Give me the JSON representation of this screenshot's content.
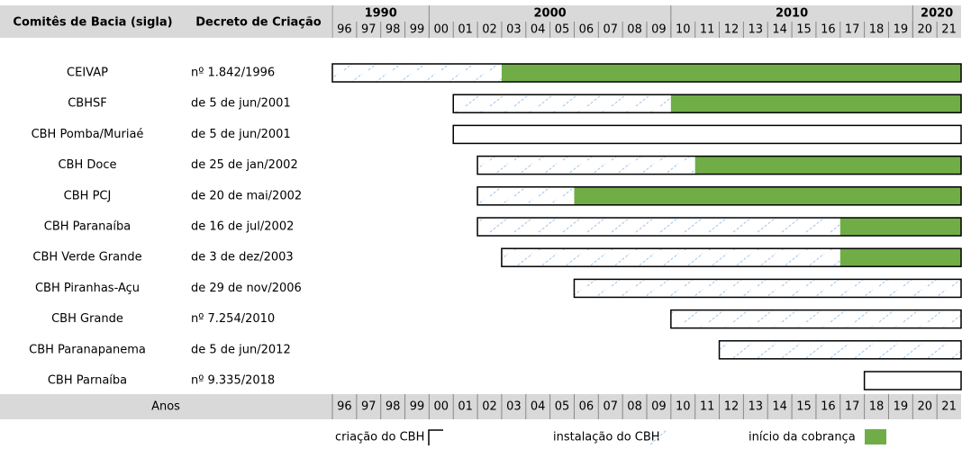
{
  "chart_data": {
    "type": "gantt",
    "headers": [
      "Comitês de Bacia (sigla)",
      "Decreto de Criação"
    ],
    "footer_label": "Anos",
    "decades": [
      1990,
      2000,
      2010,
      2020
    ],
    "years": [
      "96",
      "97",
      "98",
      "99",
      "00",
      "01",
      "02",
      "03",
      "04",
      "05",
      "06",
      "07",
      "08",
      "09",
      "10",
      "11",
      "12",
      "13",
      "14",
      "15",
      "16",
      "17",
      "18",
      "19",
      "20",
      "21"
    ],
    "xlim": [
      1996,
      2022
    ],
    "rows": [
      {
        "name": "CEIVAP",
        "decree": "nº 1.842/1996",
        "criacao": 1996,
        "instalacao": 1996,
        "cobranca": 2003
      },
      {
        "name": "CBHSF",
        "decree": "de 5 de jun/2001",
        "criacao": 2001,
        "instalacao": 2001,
        "cobranca": 2010
      },
      {
        "name": "CBH Pomba/Muriaé",
        "decree": "de 5 de jun/2001",
        "criacao": 2001,
        "instalacao": null,
        "cobranca": null
      },
      {
        "name": "CBH Doce",
        "decree": "de 25 de jan/2002",
        "criacao": 2002,
        "instalacao": 2002,
        "cobranca": 2011
      },
      {
        "name": "CBH PCJ",
        "decree": "de 20 de mai/2002",
        "criacao": 2002,
        "instalacao": 2002,
        "cobranca": 2006
      },
      {
        "name": "CBH Paranaíba",
        "decree": "de 16 de jul/2002",
        "criacao": 2002,
        "instalacao": 2002,
        "cobranca": 2017
      },
      {
        "name": "CBH Verde Grande",
        "decree": "de 3 de dez/2003",
        "criacao": 2003,
        "instalacao": 2003,
        "cobranca": 2017
      },
      {
        "name": "CBH Piranhas-Açu",
        "decree": "de 29 de nov/2006",
        "criacao": 2006,
        "instalacao": 2006,
        "cobranca": null
      },
      {
        "name": "CBH Grande",
        "decree": "nº 7.254/2010",
        "criacao": 2010,
        "instalacao": 2010,
        "cobranca": null
      },
      {
        "name": "CBH Paranapanema",
        "decree": "de 5 de jun/2012",
        "criacao": 2012,
        "instalacao": 2012,
        "cobranca": null
      },
      {
        "name": "CBH Parnaíba",
        "decree": "nº 9.335/2018",
        "criacao": 2018,
        "instalacao": null,
        "cobranca": null
      }
    ],
    "legend": [
      "criação do CBH",
      "instalação do CBH",
      "início da cobrança"
    ],
    "colors": {
      "box": "#000000",
      "hatch": "#9dc3e6",
      "cobranca": "#70ad47",
      "header": "#d9d9d9"
    }
  }
}
